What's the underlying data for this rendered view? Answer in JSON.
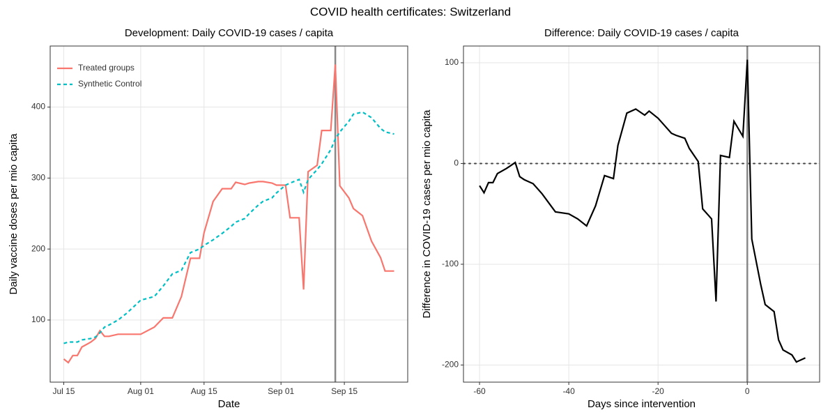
{
  "title": "COVID health certificates: Switzerland",
  "chart_data": [
    {
      "type": "line",
      "title": "Development: Daily COVID-19 cases / capita",
      "x_label": "Date",
      "y_label": "Daily vaccine doses per mio capita",
      "x": [
        "Jul 15",
        "Jul 16",
        "Jul 17",
        "Jul 18",
        "Jul 19",
        "Jul 21",
        "Jul 22",
        "Jul 23",
        "Jul 24",
        "Jul 25",
        "Jul 27",
        "Jul 29",
        "Aug 01",
        "Aug 04",
        "Aug 06",
        "Aug 08",
        "Aug 10",
        "Aug 12",
        "Aug 14",
        "Aug 15",
        "Aug 17",
        "Aug 19",
        "Aug 21",
        "Aug 22",
        "Aug 24",
        "Aug 25",
        "Aug 27",
        "Aug 28",
        "Aug 30",
        "Aug 31",
        "Sep 02",
        "Sep 03",
        "Sep 05",
        "Sep 06",
        "Sep 07",
        "Sep 09",
        "Sep 10",
        "Sep 12",
        "Sep 13",
        "Sep 14",
        "Sep 16",
        "Sep 17",
        "Sep 19",
        "Sep 21",
        "Sep 23",
        "Sep 24",
        "Sep 26"
      ],
      "series": [
        {
          "name": "Treated groups",
          "color": "#F8766D",
          "style": "solid",
          "values": [
            45,
            40,
            50,
            50,
            62,
            69,
            74,
            85,
            77,
            77,
            80,
            80,
            80,
            90,
            103,
            103,
            133,
            187,
            187,
            223,
            267,
            285,
            285,
            294,
            291,
            293,
            295,
            295,
            293,
            290,
            290,
            244,
            244,
            143,
            309,
            318,
            367,
            367,
            460,
            289,
            272,
            257,
            247,
            211,
            188,
            169,
            169
          ]
        },
        {
          "name": "Synthetic Control",
          "color": "#00BFC4",
          "style": "dashed",
          "values": [
            67,
            69,
            69,
            69,
            72,
            74,
            76,
            82,
            90,
            93,
            100,
            110,
            128,
            133,
            148,
            165,
            170,
            195,
            200,
            205,
            213,
            222,
            232,
            238,
            243,
            250,
            262,
            267,
            272,
            279,
            290,
            293,
            298,
            280,
            298,
            312,
            320,
            340,
            355,
            365,
            380,
            390,
            393,
            385,
            370,
            365,
            362
          ]
        }
      ],
      "xlim": [
        "Jul 12",
        "Sep 29"
      ],
      "xticks": [
        "Jul 15",
        "Aug 01",
        "Aug 15",
        "Sep 01",
        "Sep 15"
      ],
      "ylim": [
        12.5,
        486
      ],
      "yticks": [
        100,
        200,
        300,
        400
      ],
      "vline": "Sep 13",
      "grid": true,
      "legend": "top-left"
    },
    {
      "type": "line",
      "title": "Difference: Daily COVID-19 cases / capita",
      "x_label": "Days since intervention",
      "y_label": "Difference in COVID-19 cases per mio capita",
      "x": [
        -60,
        -59,
        -58,
        -57,
        -56,
        -54,
        -53,
        -52,
        -51,
        -50,
        -48,
        -46,
        -43,
        -40,
        -38,
        -36,
        -34,
        -32,
        -30,
        -29,
        -27,
        -25,
        -23,
        -22,
        -20,
        -19,
        -17,
        -16,
        -14,
        -13,
        -11,
        -10,
        -8,
        -7,
        -6,
        -4,
        -3,
        -1,
        0,
        1,
        3,
        4,
        6,
        7,
        8,
        10,
        11,
        13
      ],
      "series": [
        {
          "color": "#000000",
          "style": "solid",
          "values": [
            -22,
            -29,
            -19,
            -19,
            -10,
            -5,
            -2,
            1,
            -13,
            -16,
            -20,
            -30,
            -48,
            -50,
            -55,
            -62,
            -42,
            -12,
            -15,
            18,
            50,
            54,
            48,
            52,
            45,
            40,
            30,
            28,
            25,
            15,
            2,
            -45,
            -55,
            -137,
            8,
            6,
            42,
            27,
            103,
            -75,
            -120,
            -140,
            -147,
            -175,
            -185,
            -190,
            -197,
            -193
          ]
        }
      ],
      "xlim": [
        -63.6,
        16.2
      ],
      "xticks": [
        -60,
        -40,
        -20,
        0
      ],
      "ylim": [
        -217,
        116.6
      ],
      "yticks": [
        -200,
        -100,
        0,
        100
      ],
      "vline": 0,
      "hline": 0,
      "grid": true
    }
  ]
}
